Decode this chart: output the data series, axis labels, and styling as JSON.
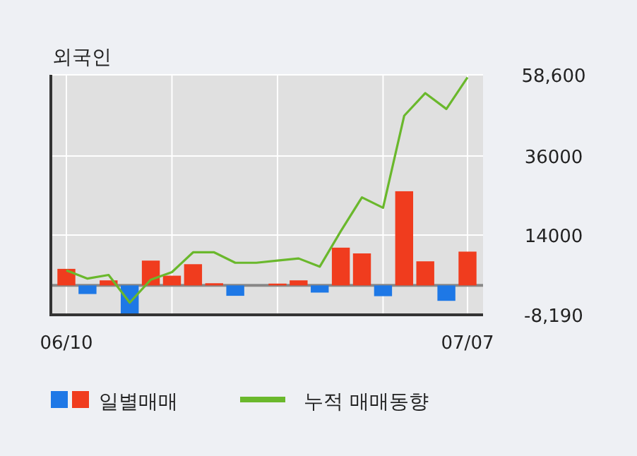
{
  "chart_data": {
    "type": "bar",
    "title": "외국인",
    "categories": [
      "06/10",
      null,
      null,
      null,
      null,
      null,
      null,
      null,
      null,
      null,
      null,
      null,
      null,
      null,
      null,
      null,
      null,
      null,
      null,
      "07/07"
    ],
    "series": [
      {
        "name": "일별매매",
        "colors": [
          "#f03c1e",
          "#1e78e6",
          "#f03c1e",
          "#1e78e6",
          "#f03c1e",
          "#f03c1e",
          "#f03c1e",
          "#f03c1e",
          "#1e78e6",
          "#f03c1e",
          "#f03c1e",
          "#f03c1e",
          "#1e78e6",
          "#f03c1e",
          "#f03c1e",
          "#1e78e6",
          "#f03c1e",
          "#f03c1e",
          "#1e78e6",
          "#f03c1e"
        ],
        "values": [
          4600,
          -2400,
          1400,
          -8100,
          6900,
          2700,
          5900,
          600,
          -2900,
          0,
          500,
          1400,
          -2000,
          10500,
          8900,
          -3000,
          26200,
          6700,
          -4300,
          9400
        ]
      },
      {
        "name": "누적 매매동향",
        "type": "line",
        "color": "#6ab82c",
        "values": [
          4200,
          1900,
          2900,
          -4800,
          1600,
          3700,
          9200,
          9200,
          6300,
          6300,
          6900,
          7500,
          5200,
          15100,
          24500,
          21600,
          47200,
          53500,
          49100,
          57900
        ]
      }
    ],
    "ylim": [
      -8190,
      58600
    ],
    "yticks": [
      {
        "value": -8190,
        "label": "-8,190"
      },
      14000,
      36000,
      {
        "value": 58600,
        "label": "58,600"
      }
    ],
    "grid": true,
    "legend": "bottom"
  }
}
